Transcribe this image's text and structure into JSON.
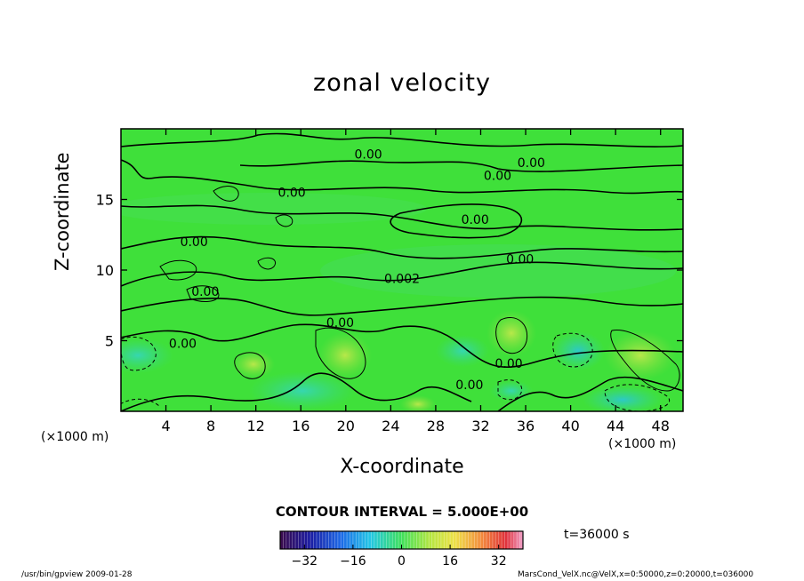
{
  "chart_data": {
    "type": "heatmap",
    "title": "zonal velocity",
    "xlabel": "X-coordinate",
    "ylabel": "Z-coordinate",
    "x_unit": "(×1000 m)",
    "y_unit": "(×1000 m)",
    "xlim": [
      0,
      50
    ],
    "ylim": [
      0,
      20
    ],
    "x_ticks": [
      4,
      8,
      12,
      16,
      20,
      24,
      28,
      32,
      36,
      40,
      44,
      48
    ],
    "y_ticks": [
      5,
      10,
      15
    ],
    "contour_interval": "CONTOUR INTERVAL = 5.000E+00",
    "colorbar_ticks": [
      -32,
      -16,
      0,
      16,
      32
    ],
    "colorbar_range": [
      -40,
      40
    ],
    "time_label": "t=36000 s",
    "contour_labels": [
      {
        "text": "0.00",
        "x": 22,
        "y": 18.2
      },
      {
        "text": "0.00",
        "x": 33.5,
        "y": 16.7
      },
      {
        "text": "0.00",
        "x": 36.5,
        "y": 17.6
      },
      {
        "text": "0.00",
        "x": 15.2,
        "y": 15.5
      },
      {
        "text": "0.00",
        "x": 31.5,
        "y": 13.6
      },
      {
        "text": "0.00",
        "x": 6.5,
        "y": 12.0
      },
      {
        "text": "0.00",
        "x": 35.5,
        "y": 10.8
      },
      {
        "text": "0.002",
        "x": 25,
        "y": 9.4
      },
      {
        "text": "0.00",
        "x": 7.5,
        "y": 8.5
      },
      {
        "text": "0.00",
        "x": 19.5,
        "y": 6.3
      },
      {
        "text": "0.00",
        "x": 5.5,
        "y": 4.8
      },
      {
        "text": "0.00",
        "x": 34.5,
        "y": 3.4
      },
      {
        "text": "0.00",
        "x": 31,
        "y": 1.9
      }
    ],
    "colors": {
      "background": "#3fe03a",
      "frame": "#000000"
    }
  },
  "footer": {
    "left": "/usr/bin/gpview  2009-01-28",
    "right": "MarsCond_VelX.nc@VelX,x=0:50000,z=0:20000,t=036000"
  }
}
